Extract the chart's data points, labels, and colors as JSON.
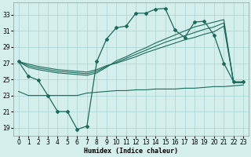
{
  "xlabel": "Humidex (Indice chaleur)",
  "bg_color": "#d4eeeb",
  "line_color": "#1a6b5a",
  "grid_color": "#aed8d4",
  "x_ticks": [
    0,
    1,
    2,
    3,
    4,
    5,
    6,
    7,
    8,
    9,
    10,
    11,
    12,
    13,
    14,
    15,
    16,
    17,
    18,
    19,
    20,
    21,
    22,
    23
  ],
  "y_ticks": [
    19,
    21,
    23,
    25,
    27,
    29,
    31,
    33
  ],
  "xlim": [
    -0.5,
    23.5
  ],
  "ylim": [
    18.0,
    34.5
  ],
  "line1_x": [
    0,
    1,
    2,
    3,
    4,
    5,
    6,
    7,
    8,
    9,
    10,
    11,
    12,
    13,
    14,
    15,
    16,
    17,
    18,
    19,
    20,
    21,
    22,
    23
  ],
  "line1_y": [
    27.2,
    25.4,
    24.9,
    23.0,
    21.0,
    21.0,
    18.8,
    19.2,
    27.2,
    30.0,
    31.4,
    31.6,
    33.2,
    33.2,
    33.7,
    33.8,
    31.1,
    30.2,
    32.1,
    32.2,
    30.5,
    27.0,
    24.7,
    24.7
  ],
  "line2_x": [
    0,
    1,
    2,
    3,
    4,
    5,
    6,
    7,
    8,
    9,
    10,
    11,
    12,
    13,
    14,
    15,
    16,
    17,
    18,
    19,
    20,
    21,
    22,
    23
  ],
  "line2_y": [
    27.2,
    26.5,
    26.2,
    26.0,
    25.8,
    25.7,
    25.6,
    25.5,
    25.8,
    26.5,
    27.3,
    27.8,
    28.4,
    28.9,
    29.5,
    30.0,
    30.5,
    31.0,
    31.5,
    31.8,
    32.1,
    32.4,
    24.6,
    24.6
  ],
  "line3_x": [
    0,
    1,
    2,
    3,
    4,
    5,
    6,
    7,
    8,
    9,
    10,
    11,
    12,
    13,
    14,
    15,
    16,
    17,
    18,
    19,
    20,
    21,
    22,
    23
  ],
  "line3_y": [
    27.2,
    26.7,
    26.4,
    26.2,
    26.0,
    25.9,
    25.8,
    25.7,
    26.0,
    26.6,
    27.1,
    27.6,
    28.1,
    28.6,
    29.1,
    29.6,
    30.0,
    30.4,
    30.8,
    31.2,
    31.5,
    32.0,
    24.6,
    24.6
  ],
  "line4_x": [
    0,
    1,
    2,
    3,
    4,
    5,
    6,
    7,
    8,
    9,
    10,
    11,
    12,
    13,
    14,
    15,
    16,
    17,
    18,
    19,
    20,
    21,
    22,
    23
  ],
  "line4_y": [
    27.2,
    26.9,
    26.6,
    26.4,
    26.2,
    26.1,
    26.0,
    25.9,
    26.2,
    26.7,
    27.0,
    27.4,
    27.8,
    28.3,
    28.7,
    29.1,
    29.5,
    29.9,
    30.2,
    30.6,
    30.9,
    31.6,
    24.6,
    24.6
  ],
  "line5_x": [
    0,
    1,
    2,
    3,
    4,
    5,
    6,
    7,
    8,
    9,
    10,
    11,
    12,
    13,
    14,
    15,
    16,
    17,
    18,
    19,
    20,
    21,
    22,
    23
  ],
  "line5_y": [
    23.5,
    23.0,
    23.0,
    23.0,
    23.0,
    23.0,
    23.0,
    23.3,
    23.4,
    23.5,
    23.6,
    23.6,
    23.7,
    23.7,
    23.8,
    23.8,
    23.8,
    23.9,
    23.9,
    24.0,
    24.1,
    24.1,
    24.2,
    24.3
  ]
}
